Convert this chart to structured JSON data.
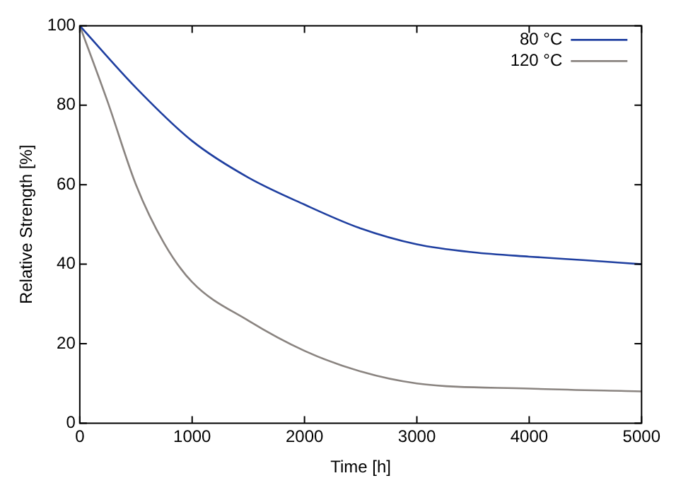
{
  "chart_data": {
    "type": "line",
    "xlabel": "Time [h]",
    "ylabel": "Relative Strength [%]",
    "xlim": [
      0,
      5000
    ],
    "xticks": [
      0,
      1000,
      2000,
      3000,
      4000,
      5000
    ],
    "ylim": [
      0,
      100
    ],
    "yticks": [
      0,
      20,
      40,
      60,
      80,
      100
    ],
    "grid": false,
    "legend": "top right",
    "marker": "none",
    "line_style": "solid",
    "series": [
      {
        "name": "80 °C",
        "color": "#1f3fa0",
        "x": [
          0,
          500,
          1000,
          1500,
          2000,
          2500,
          3000,
          3500,
          4000,
          4500,
          5000
        ],
        "values": [
          100,
          84.4,
          71,
          61.8,
          55,
          49,
          45,
          43,
          41.9,
          41,
          40
        ]
      },
      {
        "name": "120 °C",
        "color": "#8a8480",
        "x": [
          0,
          250,
          500,
          750,
          1000,
          1500,
          2000,
          2500,
          3000,
          4000,
          5000
        ],
        "values": [
          100,
          80.7,
          60,
          45.3,
          35.5,
          25.8,
          18.2,
          13,
          10,
          8.7,
          8
        ]
      }
    ]
  }
}
